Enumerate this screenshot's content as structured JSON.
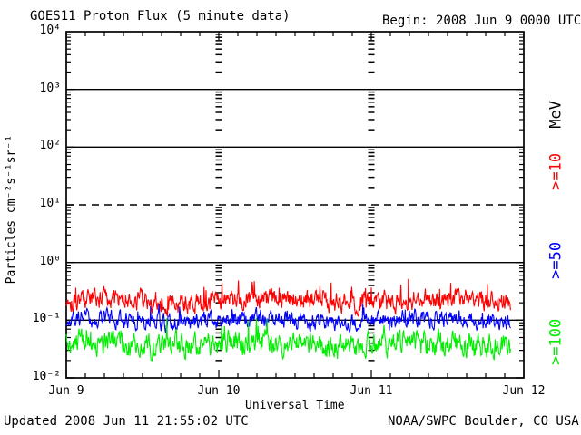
{
  "header": {
    "title": "GOES11 Proton Flux (5 minute data)",
    "begin_label": "Begin: 2008 Jun 9 0000 UTC"
  },
  "footer": {
    "updated": "Updated 2008 Jun 11 21:55:02 UTC",
    "source": "NOAA/SWPC Boulder, CO USA"
  },
  "chart_data": {
    "type": "line",
    "title": "GOES11 Proton Flux (5 minute data)",
    "begin": "2008 Jun 9 0000 UTC",
    "end_of_data": "2008 Jun 11 21:55 UTC",
    "xlabel": "Universal Time",
    "ylabel": "Particles cm⁻²s⁻¹sr⁻¹",
    "right_axis_label": "MeV",
    "yscale": "log",
    "ylim_log10": [
      -2,
      4
    ],
    "y_tick_labels": [
      "10⁴",
      "10³",
      "10²",
      "10¹",
      "10⁰",
      "10⁻¹",
      "10⁻²"
    ],
    "x_tick_labels": [
      "Jun 9",
      "Jun 10",
      "Jun 11",
      "Jun 12"
    ],
    "x_range_days": 3,
    "points_per_day": 288,
    "n_points": 840,
    "grid": {
      "solid_decade_lines": [
        3,
        2,
        0,
        -1
      ],
      "dashed_decade_lines": [
        1
      ],
      "day_boundary_tick_columns": [
        "Jun 10",
        "Jun 11"
      ],
      "x_minor_tick_hours": 3
    },
    "colors": {
      "frame": "#000000",
      "background": "#ffffff"
    },
    "series": [
      {
        "name": ">=10",
        "energy": ">=10 MeV",
        "color": "#ff0000",
        "median_flux": 0.21,
        "min_flux": 0.12,
        "max_flux": 0.62,
        "synth": {
          "base_log10": -0.66,
          "amp": 0.145,
          "phi": 0.5,
          "spike_p": 0.05,
          "spike_amp": 0.35,
          "clamp_log10": [
            -0.93,
            -0.19
          ],
          "wobble": 0.035,
          "seed": 101
        }
      },
      {
        "name": ">=50",
        "energy": ">=50 MeV",
        "color": "#0000ff",
        "median_flux": 0.1,
        "min_flux": 0.05,
        "max_flux": 0.2,
        "synth": {
          "base_log10": -1.0,
          "amp": 0.12,
          "phi": 0.5,
          "spike_p": 0.03,
          "spike_amp": 0.22,
          "clamp_log10": [
            -1.3,
            -0.7
          ],
          "wobble": 0.03,
          "seed": 202
        }
      },
      {
        "name": ">=100",
        "energy": ">=100 MeV",
        "color": "#00ee00",
        "median_flux": 0.045,
        "min_flux": 0.02,
        "max_flux": 0.11,
        "synth": {
          "base_log10": -1.42,
          "amp": 0.16,
          "phi": 0.55,
          "spike_p": 0.04,
          "spike_amp": 0.3,
          "clamp_log10": [
            -1.7,
            -0.96
          ],
          "wobble": 0.04,
          "seed": 303
        }
      }
    ]
  }
}
